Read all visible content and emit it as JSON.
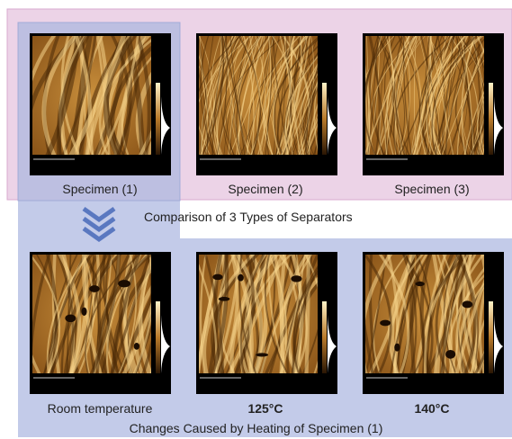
{
  "top_row": {
    "captions": [
      "Specimen (1)",
      "Specimen (2)",
      "Specimen (3)"
    ]
  },
  "comparison_label": "Comparison of 3 Types of Separators",
  "bottom_row": {
    "captions": [
      "Room temperature",
      "125°C",
      "140°C"
    ]
  },
  "heating_label": "Changes Caused by Heating of Specimen (1)"
}
